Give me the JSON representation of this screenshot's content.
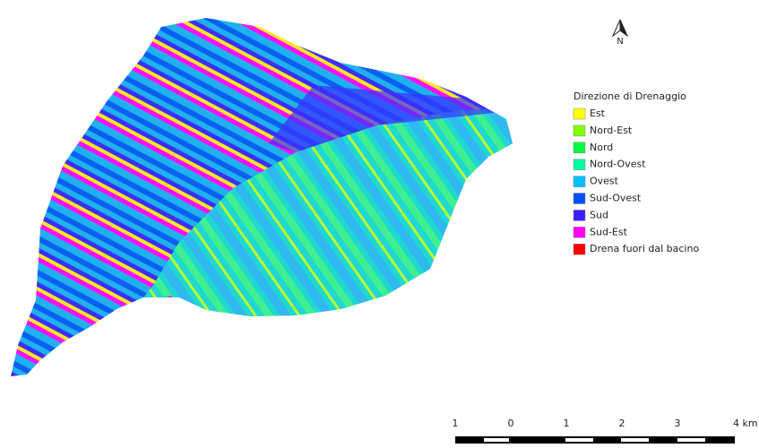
{
  "north_arrow": {
    "label": "N"
  },
  "legend": {
    "title": "Direzione di Drenaggio",
    "items": [
      {
        "label": "Est",
        "color": "#ffff00"
      },
      {
        "label": "Nord-Est",
        "color": "#7fff00"
      },
      {
        "label": "Nord",
        "color": "#00ff40"
      },
      {
        "label": "Nord-Ovest",
        "color": "#00ffa0"
      },
      {
        "label": "Ovest",
        "color": "#00bfff"
      },
      {
        "label": "Sud-Ovest",
        "color": "#0050ff"
      },
      {
        "label": "Sud",
        "color": "#3a20ff"
      },
      {
        "label": "Sud-Est",
        "color": "#ff00ff"
      },
      {
        "label": "Drena fuori dal bacino",
        "color": "#ff0000"
      }
    ]
  },
  "scale_bar": {
    "labels": [
      "1",
      "0",
      "1",
      "2",
      "3",
      "4 km"
    ]
  }
}
